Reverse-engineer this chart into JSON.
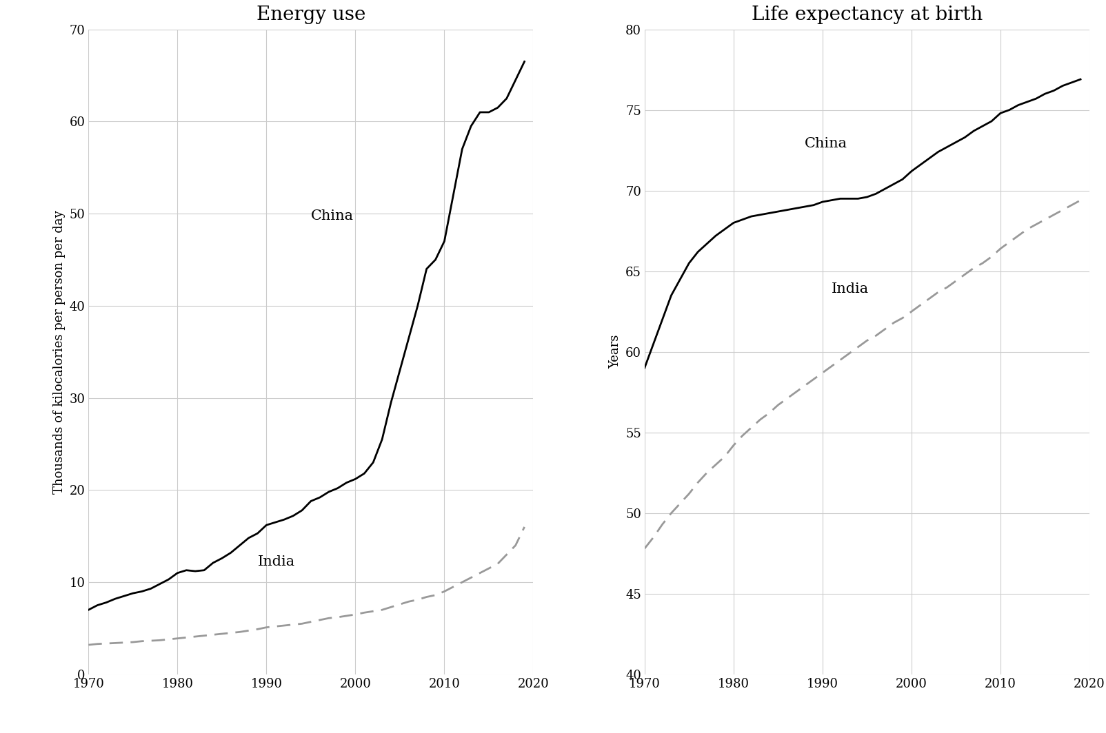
{
  "energy_years": [
    1970,
    1971,
    1972,
    1973,
    1974,
    1975,
    1976,
    1977,
    1978,
    1979,
    1980,
    1981,
    1982,
    1983,
    1984,
    1985,
    1986,
    1987,
    1988,
    1989,
    1990,
    1991,
    1992,
    1993,
    1994,
    1995,
    1996,
    1997,
    1998,
    1999,
    2000,
    2001,
    2002,
    2003,
    2004,
    2005,
    2006,
    2007,
    2008,
    2009,
    2010,
    2011,
    2012,
    2013,
    2014,
    2015,
    2016,
    2017,
    2018,
    2019
  ],
  "china_energy": [
    7.0,
    7.5,
    7.8,
    8.2,
    8.5,
    8.8,
    9.0,
    9.3,
    9.8,
    10.3,
    11.0,
    11.3,
    11.2,
    11.3,
    12.1,
    12.6,
    13.2,
    14.0,
    14.8,
    15.3,
    16.2,
    16.5,
    16.8,
    17.2,
    17.8,
    18.8,
    19.2,
    19.8,
    20.2,
    20.8,
    21.2,
    21.8,
    23.0,
    25.5,
    29.5,
    33.0,
    36.5,
    40.0,
    44.0,
    45.0,
    47.0,
    52.0,
    57.0,
    59.5,
    61.0,
    61.0,
    61.5,
    62.5,
    64.5,
    66.5
  ],
  "india_energy": [
    3.2,
    3.3,
    3.35,
    3.4,
    3.45,
    3.5,
    3.6,
    3.65,
    3.7,
    3.8,
    3.9,
    4.0,
    4.1,
    4.2,
    4.3,
    4.4,
    4.5,
    4.6,
    4.75,
    4.9,
    5.1,
    5.2,
    5.3,
    5.4,
    5.5,
    5.7,
    5.9,
    6.1,
    6.2,
    6.35,
    6.5,
    6.7,
    6.85,
    7.0,
    7.3,
    7.6,
    7.9,
    8.1,
    8.4,
    8.6,
    9.0,
    9.5,
    10.0,
    10.5,
    11.0,
    11.5,
    12.0,
    13.0,
    14.0,
    16.0
  ],
  "life_years": [
    1970,
    1971,
    1972,
    1973,
    1974,
    1975,
    1976,
    1977,
    1978,
    1979,
    1980,
    1981,
    1982,
    1983,
    1984,
    1985,
    1986,
    1987,
    1988,
    1989,
    1990,
    1991,
    1992,
    1993,
    1994,
    1995,
    1996,
    1997,
    1998,
    1999,
    2000,
    2001,
    2002,
    2003,
    2004,
    2005,
    2006,
    2007,
    2008,
    2009,
    2010,
    2011,
    2012,
    2013,
    2014,
    2015,
    2016,
    2017,
    2018,
    2019
  ],
  "china_life": [
    59.0,
    60.5,
    62.0,
    63.5,
    64.5,
    65.5,
    66.2,
    66.7,
    67.2,
    67.6,
    68.0,
    68.2,
    68.4,
    68.5,
    68.6,
    68.7,
    68.8,
    68.9,
    69.0,
    69.1,
    69.3,
    69.4,
    69.5,
    69.5,
    69.5,
    69.6,
    69.8,
    70.1,
    70.4,
    70.7,
    71.2,
    71.6,
    72.0,
    72.4,
    72.7,
    73.0,
    73.3,
    73.7,
    74.0,
    74.3,
    74.8,
    75.0,
    75.3,
    75.5,
    75.7,
    76.0,
    76.2,
    76.5,
    76.7,
    76.9
  ],
  "india_life": [
    47.8,
    48.5,
    49.3,
    50.0,
    50.6,
    51.2,
    51.9,
    52.5,
    53.0,
    53.5,
    54.2,
    54.8,
    55.3,
    55.8,
    56.2,
    56.7,
    57.1,
    57.5,
    57.9,
    58.3,
    58.7,
    59.1,
    59.5,
    59.9,
    60.3,
    60.7,
    61.0,
    61.4,
    61.8,
    62.1,
    62.5,
    62.9,
    63.3,
    63.7,
    64.0,
    64.4,
    64.8,
    65.2,
    65.5,
    65.9,
    66.4,
    66.8,
    67.2,
    67.6,
    67.9,
    68.2,
    68.5,
    68.8,
    69.1,
    69.4
  ],
  "energy_title": "Energy use",
  "life_title": "Life expectancy at birth",
  "energy_ylabel": "Thousands of kilocalories per person per day",
  "life_ylabel": "Years",
  "energy_ylim": [
    0,
    70
  ],
  "life_ylim": [
    40,
    80
  ],
  "energy_yticks": [
    0,
    10,
    20,
    30,
    40,
    50,
    60,
    70
  ],
  "life_yticks": [
    40,
    45,
    50,
    55,
    60,
    65,
    70,
    75,
    80
  ],
  "xlim": [
    1970,
    2020
  ],
  "xticks": [
    1970,
    1980,
    1990,
    2000,
    2010,
    2020
  ],
  "china_label": "China",
  "india_label": "India",
  "china_color": "#000000",
  "india_color": "#999999",
  "background_color": "#ffffff",
  "grid_color": "#cccccc",
  "title_fontsize": 20,
  "label_fontsize": 13,
  "tick_fontsize": 13,
  "annot_fontsize": 15,
  "energy_china_annot": [
    1995,
    49.0
  ],
  "energy_india_annot": [
    1989,
    11.5
  ],
  "life_china_annot": [
    1988,
    72.5
  ],
  "life_india_annot": [
    1991,
    63.5
  ]
}
